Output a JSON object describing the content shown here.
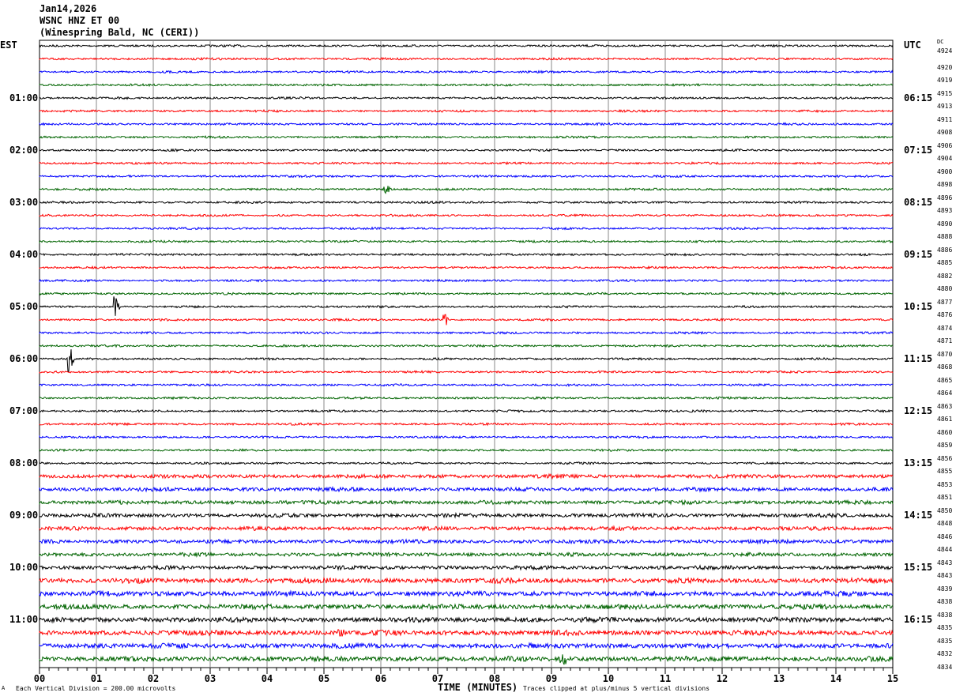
{
  "header": {
    "date": "Jan14,2026",
    "station": "WSNC HNZ ET 00",
    "location": "(Winespring Bald, NC (CERI))"
  },
  "left_tz": "EST",
  "right_tz": "UTC",
  "dc_label": "DC",
  "chart_data": {
    "type": "line",
    "description_kind": "helicorder",
    "trace_colors": [
      "#000000",
      "#ff0000",
      "#0000ff",
      "#006400"
    ],
    "rows": 48,
    "minutes_per_row": 15,
    "xlabel": "TIME (MINUTES)",
    "xlim": [
      0,
      15
    ],
    "x_ticks": [
      "00",
      "01",
      "02",
      "03",
      "04",
      "05",
      "06",
      "07",
      "08",
      "09",
      "10",
      "11",
      "12",
      "13",
      "14",
      "15"
    ],
    "grid": true,
    "est_labels": [
      "01:00",
      "02:00",
      "03:00",
      "04:00",
      "05:00",
      "06:00",
      "07:00",
      "08:00",
      "09:00",
      "10:00",
      "11:00"
    ],
    "utc_labels": [
      "06:15",
      "07:15",
      "08:15",
      "09:15",
      "10:15",
      "11:15",
      "12:15",
      "13:15",
      "14:15",
      "15:15",
      "16:15"
    ],
    "dc_values": [
      "4924",
      "4920",
      "4919",
      "4915",
      "4913",
      "4911",
      "4908",
      "4906",
      "4904",
      "4900",
      "4898",
      "4896",
      "4893",
      "4890",
      "4888",
      "4886",
      "4885",
      "4882",
      "4880",
      "4877",
      "4876",
      "4874",
      "4871",
      "4870",
      "4868",
      "4865",
      "4864",
      "4863",
      "4861",
      "4860",
      "4859",
      "4856",
      "4855",
      "4853",
      "4851",
      "4850",
      "4848",
      "4846",
      "4844",
      "4843",
      "4843",
      "4839",
      "4838",
      "4838",
      "4835",
      "4835",
      "4832",
      "4834"
    ]
  },
  "footer": {
    "scale": "Each Vertical Division =  200.00 microvolts",
    "clip": "Traces clipped at plus/minus 5 vertical divisions",
    "corner": "A"
  }
}
